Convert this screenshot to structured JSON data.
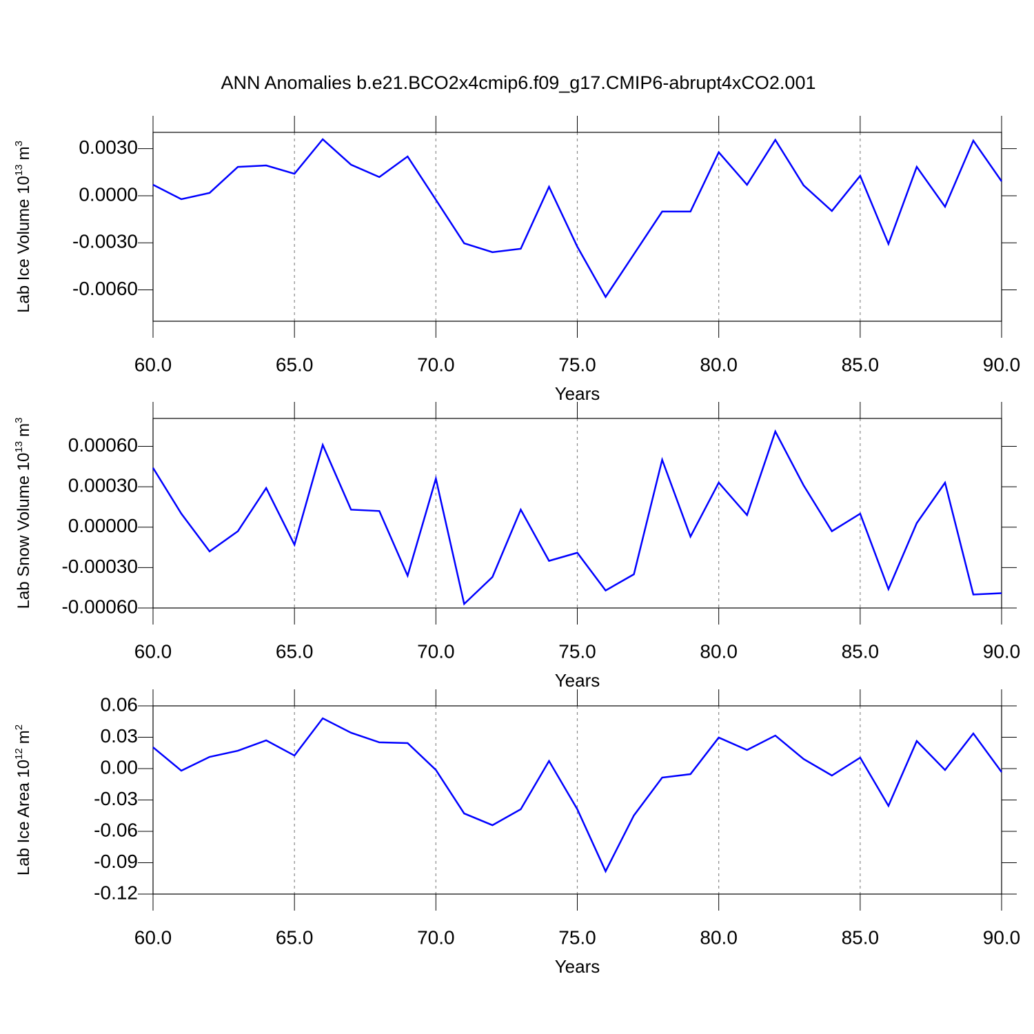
{
  "title": "ANN Anomalies b.e21.BCO2x4cmip6.f09_g17.CMIP6-abrupt4xCO2.001",
  "chart_data": [
    {
      "type": "line",
      "xlabel": "Years",
      "ylabel": {
        "text": "Lab Ice Volume 10",
        "power": "13",
        "unit": "m",
        "unit_power": "3"
      },
      "x": [
        60,
        61,
        62,
        63,
        64,
        65,
        66,
        67,
        68,
        69,
        70,
        71,
        72,
        73,
        74,
        75,
        76,
        77,
        78,
        79,
        80,
        81,
        82,
        83,
        84,
        85,
        86,
        87,
        88,
        89,
        90
      ],
      "values": [
        0.0007,
        -0.00022,
        0.00018,
        0.00184,
        0.00193,
        0.0014,
        0.0036,
        0.00198,
        0.00119,
        0.0025,
        -0.00026,
        -0.00303,
        -0.0036,
        -0.00338,
        0.00057,
        -0.00325,
        -0.00645,
        -0.00373,
        -0.00101,
        -0.00101,
        0.00277,
        0.0007,
        0.00356,
        0.00066,
        -0.00097,
        0.00127,
        -0.00307,
        0.00184,
        -0.0007,
        0.00351,
        0.00092
      ],
      "color": "#0000ff",
      "xlim": [
        60,
        90
      ],
      "xticks": [
        {
          "value": 60,
          "label": "60.0"
        },
        {
          "value": 65,
          "label": "65.0"
        },
        {
          "value": 70,
          "label": "70.0"
        },
        {
          "value": 75,
          "label": "75.0"
        },
        {
          "value": 80,
          "label": "80.0"
        },
        {
          "value": 85,
          "label": "85.0"
        },
        {
          "value": 90,
          "label": "90.0"
        }
      ],
      "ylim": [
        -0.008,
        0.00404
      ],
      "yticks": [
        {
          "value": 0.003,
          "label": "0.0030"
        },
        {
          "value": 0,
          "label": "0.0000"
        },
        {
          "value": -0.003,
          "label": "-0.0030"
        },
        {
          "value": -0.006,
          "label": "-0.0060"
        }
      ],
      "grid": "x"
    },
    {
      "type": "line",
      "xlabel": "Years",
      "ylabel": {
        "text": "Lab Snow Volume 10",
        "power": "13",
        "unit": "m",
        "unit_power": "3"
      },
      "x": [
        60,
        61,
        62,
        63,
        64,
        65,
        66,
        67,
        68,
        69,
        70,
        71,
        72,
        73,
        74,
        75,
        76,
        77,
        78,
        79,
        80,
        81,
        82,
        83,
        84,
        85,
        86,
        87,
        88,
        89,
        90
      ],
      "values": [
        0.00044,
        0.0001,
        -0.00018,
        -3e-05,
        0.00029,
        -0.00013,
        0.00061,
        0.00013,
        0.00012,
        -0.00036,
        0.00036,
        -0.00057,
        -0.00037,
        0.00013,
        -0.00025,
        -0.00019,
        -0.00047,
        -0.00035,
        0.0005,
        -7e-05,
        0.00033,
        9e-05,
        0.00071,
        0.00031,
        -3e-05,
        0.0001,
        -0.00046,
        3e-05,
        0.00033,
        -0.0005,
        -0.00049
      ],
      "color": "#0000ff",
      "xlim": [
        60,
        90
      ],
      "xticks": [
        {
          "value": 60,
          "label": "60.0"
        },
        {
          "value": 65,
          "label": "65.0"
        },
        {
          "value": 70,
          "label": "70.0"
        },
        {
          "value": 75,
          "label": "75.0"
        },
        {
          "value": 80,
          "label": "80.0"
        },
        {
          "value": 85,
          "label": "85.0"
        },
        {
          "value": 90,
          "label": "90.0"
        }
      ],
      "ylim": [
        -0.0006,
        0.000807
      ],
      "yticks": [
        {
          "value": 0.0006,
          "label": "0.00060"
        },
        {
          "value": 0.0003,
          "label": "0.00030"
        },
        {
          "value": 0,
          "label": "0.00000"
        },
        {
          "value": -0.0003,
          "label": "-0.00030"
        },
        {
          "value": -0.0006,
          "label": "-0.00060"
        }
      ],
      "grid": "x"
    },
    {
      "type": "line",
      "xlabel": "Years",
      "ylabel": {
        "text": "Lab Ice Area 10",
        "power": "12",
        "unit": "m",
        "unit_power": "2"
      },
      "x": [
        60,
        61,
        62,
        63,
        64,
        65,
        66,
        67,
        68,
        69,
        70,
        71,
        72,
        73,
        74,
        75,
        76,
        77,
        78,
        79,
        80,
        81,
        82,
        83,
        84,
        85,
        86,
        87,
        88,
        89,
        90
      ],
      "values": [
        0.0204,
        -0.002,
        0.0112,
        0.0171,
        0.027,
        0.0125,
        0.0481,
        0.0343,
        0.0251,
        0.0244,
        -0.0013,
        -0.0429,
        -0.0541,
        -0.0389,
        0.0073,
        -0.0389,
        -0.0982,
        -0.0448,
        -0.0086,
        -0.0053,
        0.0297,
        0.0178,
        0.0316,
        0.0092,
        -0.0066,
        0.0105,
        -0.0356,
        0.0264,
        -0.0013,
        0.0336,
        -0.0033
      ],
      "color": "#0000ff",
      "xlim": [
        60,
        90
      ],
      "xticks": [
        {
          "value": 60,
          "label": "60.0"
        },
        {
          "value": 65,
          "label": "65.0"
        },
        {
          "value": 70,
          "label": "70.0"
        },
        {
          "value": 75,
          "label": "75.0"
        },
        {
          "value": 80,
          "label": "80.0"
        },
        {
          "value": 85,
          "label": "85.0"
        },
        {
          "value": 90,
          "label": "90.0"
        }
      ],
      "ylim": [
        -0.12,
        0.06
      ],
      "yticks": [
        0.06,
        0.03,
        {
          "value": 0,
          "label": "0.00"
        },
        -0.03,
        -0.06,
        -0.09,
        -0.12
      ],
      "grid": "x"
    }
  ]
}
